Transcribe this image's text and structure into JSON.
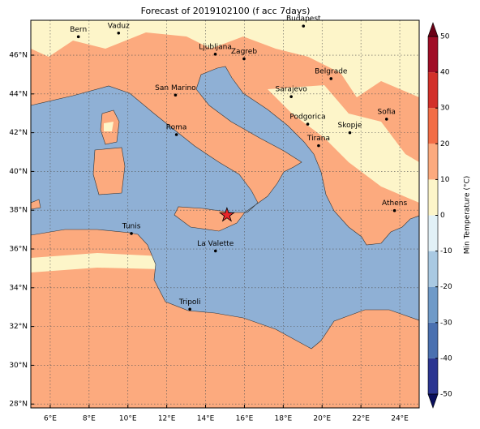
{
  "map": {
    "title": "Forecast of 2019102100 (f acc 7days)",
    "xlim": [
      5,
      25
    ],
    "ylim": [
      27.8,
      47.8
    ],
    "xticks": [
      {
        "value": 6,
        "label": "6°E"
      },
      {
        "value": 8,
        "label": "8°E"
      },
      {
        "value": 10,
        "label": "10°E"
      },
      {
        "value": 12,
        "label": "12°E"
      },
      {
        "value": 14,
        "label": "14°E"
      },
      {
        "value": 16,
        "label": "16°E"
      },
      {
        "value": 18,
        "label": "18°E"
      },
      {
        "value": 20,
        "label": "20°E"
      },
      {
        "value": 22,
        "label": "22°E"
      },
      {
        "value": 24,
        "label": "24°E"
      }
    ],
    "yticks": [
      {
        "value": 28,
        "label": "28°N"
      },
      {
        "value": 30,
        "label": "30°N"
      },
      {
        "value": 32,
        "label": "32°N"
      },
      {
        "value": 34,
        "label": "34°N"
      },
      {
        "value": 36,
        "label": "36°N"
      },
      {
        "value": 38,
        "label": "38°N"
      },
      {
        "value": 40,
        "label": "40°N"
      },
      {
        "value": 42,
        "label": "42°N"
      },
      {
        "value": 44,
        "label": "44°N"
      },
      {
        "value": 46,
        "label": "46°N"
      }
    ],
    "grid": true,
    "cities": [
      {
        "name": "Bern",
        "lon": 7.45,
        "lat": 46.95
      },
      {
        "name": "Vaduz",
        "lon": 9.52,
        "lat": 47.14
      },
      {
        "name": "Budapest",
        "lon": 19.04,
        "lat": 47.5
      },
      {
        "name": "Ljubljana",
        "lon": 14.5,
        "lat": 46.05
      },
      {
        "name": "Zagreb",
        "lon": 15.98,
        "lat": 45.81
      },
      {
        "name": "Belgrade",
        "lon": 20.46,
        "lat": 44.79
      },
      {
        "name": "San Marino",
        "lon": 12.45,
        "lat": 43.94
      },
      {
        "name": "Sarajevo",
        "lon": 18.41,
        "lat": 43.86
      },
      {
        "name": "Sofia",
        "lon": 23.32,
        "lat": 42.7
      },
      {
        "name": "Roma",
        "lon": 12.5,
        "lat": 41.9
      },
      {
        "name": "Podgorica",
        "lon": 19.26,
        "lat": 42.44
      },
      {
        "name": "Skopje",
        "lon": 21.43,
        "lat": 42.0
      },
      {
        "name": "Tirana",
        "lon": 19.82,
        "lat": 41.33
      },
      {
        "name": "Athens",
        "lon": 23.73,
        "lat": 37.98
      },
      {
        "name": "Tunis",
        "lon": 10.18,
        "lat": 36.8
      },
      {
        "name": "La Valette",
        "lon": 14.51,
        "lat": 35.9
      },
      {
        "name": "Tripoli",
        "lon": 13.19,
        "lat": 32.89
      }
    ],
    "marker": {
      "lon": 15.1,
      "lat": 37.75,
      "color": "#e8262a"
    },
    "colorbar": {
      "label": "Min Temperature (°C)",
      "lim": [
        -50,
        50
      ],
      "ticks": [
        -50,
        -40,
        -30,
        -20,
        -10,
        0,
        10,
        20,
        30,
        40,
        50
      ],
      "levels": [
        -50,
        -40,
        -30,
        -20,
        -10,
        0,
        10,
        20,
        30,
        40,
        50
      ],
      "colors": [
        "#2b3591",
        "#4a70b0",
        "#6f9ac8",
        "#a9c9e2",
        "#e2f1f7",
        "#fdf5c9",
        "#fcaa7e",
        "#f26d46",
        "#d2302a",
        "#a00d26"
      ],
      "under_color": "#0a0f5c",
      "over_color": "#6b0016"
    }
  }
}
